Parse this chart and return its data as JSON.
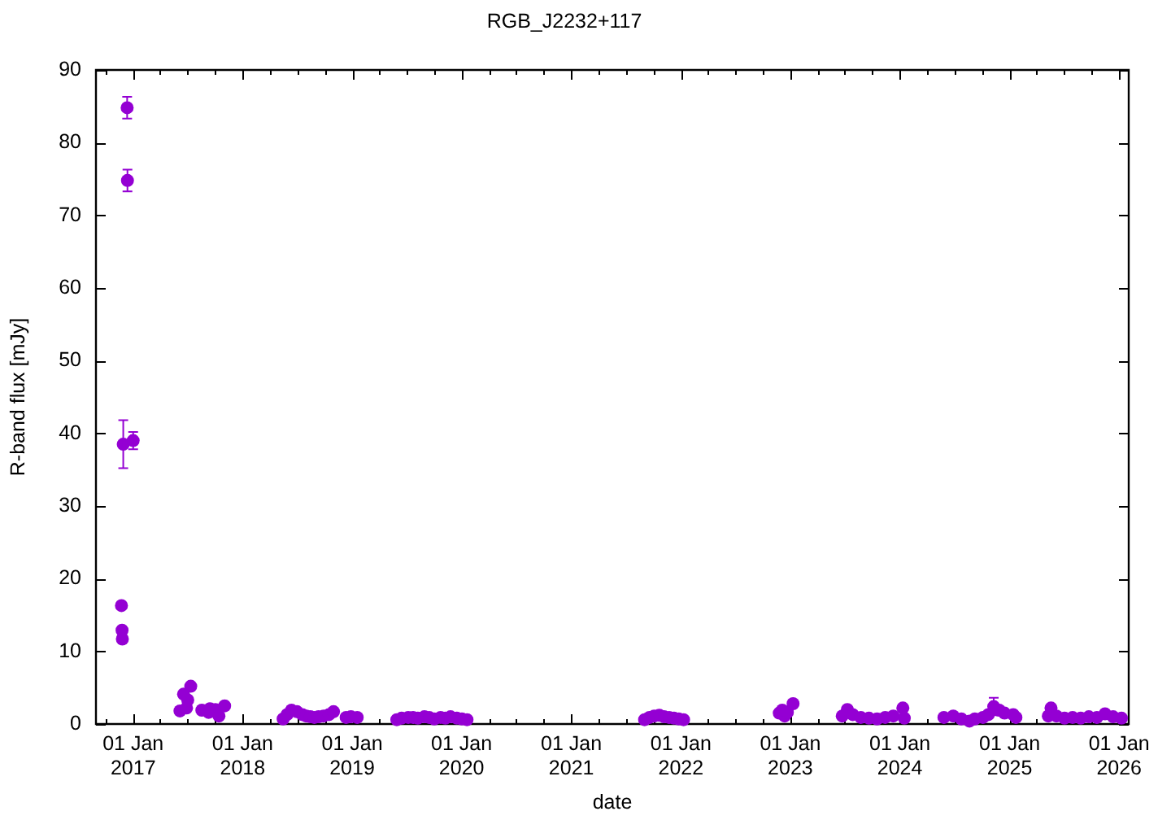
{
  "chart_data": {
    "type": "scatter",
    "title": "RGB_J2232+117",
    "xlabel": "date",
    "ylabel": "R-band flux [mJy]",
    "color": "#9400d3",
    "marker": "circle",
    "x": [
      "2016-11-23",
      "2016-11-25",
      "2016-11-26",
      "2016-11-29",
      "2016-12-12",
      "2016-12-13",
      "2017-01-01",
      "2017-06-06",
      "2017-06-18",
      "2017-06-28",
      "2017-07-02",
      "2017-07-12",
      "2017-08-18",
      "2017-09-10",
      "2017-09-14",
      "2017-10-02",
      "2017-10-14",
      "2017-11-02",
      "2018-05-16",
      "2018-05-29",
      "2018-06-13",
      "2018-07-01",
      "2018-07-19",
      "2018-08-01",
      "2018-08-15",
      "2018-08-28",
      "2018-09-11",
      "2018-09-28",
      "2018-10-16",
      "2018-10-31",
      "2018-12-12",
      "2018-12-28",
      "2019-01-18",
      "2019-05-30",
      "2019-06-15",
      "2019-07-07",
      "2019-07-23",
      "2019-08-08",
      "2019-08-30",
      "2019-09-15",
      "2019-10-02",
      "2019-10-23",
      "2019-11-08",
      "2019-11-25",
      "2019-12-16",
      "2020-01-02",
      "2020-01-19",
      "2021-09-02",
      "2021-09-18",
      "2021-10-04",
      "2021-10-21",
      "2021-11-06",
      "2021-11-23",
      "2021-12-09",
      "2021-12-25",
      "2022-01-10",
      "2022-11-25",
      "2022-12-05",
      "2022-12-13",
      "2022-12-22",
      "2023-01-10",
      "2023-06-23",
      "2023-07-10",
      "2023-07-28",
      "2023-08-24",
      "2023-09-20",
      "2023-10-17",
      "2023-11-13",
      "2023-12-10",
      "2024-01-11",
      "2024-01-16",
      "2024-05-27",
      "2024-06-27",
      "2024-07-24",
      "2024-08-20",
      "2024-09-07",
      "2024-10-04",
      "2024-10-22",
      "2024-11-09",
      "2024-11-27",
      "2024-12-15",
      "2025-01-13",
      "2025-01-22",
      "2025-05-10",
      "2025-05-19",
      "2025-06-06",
      "2025-07-03",
      "2025-07-30",
      "2025-08-26",
      "2025-09-22",
      "2025-10-19",
      "2025-11-15",
      "2025-12-12",
      "2026-01-09"
    ],
    "values": [
      16.3,
      12.9,
      11.7,
      38.5,
      84.8,
      74.8,
      39.0,
      1.8,
      4.1,
      2.2,
      3.3,
      5.2,
      1.9,
      1.6,
      2.1,
      2.0,
      1.1,
      2.5,
      0.7,
      1.3,
      1.9,
      1.7,
      1.3,
      1.1,
      1.0,
      0.9,
      1.0,
      1.1,
      1.3,
      1.7,
      0.9,
      1.0,
      0.9,
      0.6,
      0.8,
      0.9,
      0.9,
      0.8,
      1.0,
      0.9,
      0.7,
      0.9,
      0.8,
      1.0,
      0.8,
      0.7,
      0.6,
      0.6,
      0.9,
      1.1,
      1.2,
      1.0,
      0.9,
      0.8,
      0.7,
      0.6,
      1.5,
      1.9,
      1.1,
      1.6,
      2.8,
      1.1,
      2.0,
      1.3,
      0.9,
      0.8,
      0.7,
      0.9,
      1.1,
      2.2,
      0.8,
      0.9,
      1.1,
      0.7,
      0.4,
      0.7,
      0.9,
      1.3,
      2.4,
      1.9,
      1.5,
      1.3,
      0.9,
      1.1,
      2.2,
      1.1,
      0.8,
      0.9,
      0.8,
      1.0,
      0.9,
      1.4,
      1.0,
      0.8
    ],
    "errors": [
      null,
      null,
      null,
      3.3,
      1.5,
      1.5,
      1.2,
      null,
      null,
      null,
      null,
      null,
      null,
      null,
      null,
      null,
      null,
      null,
      null,
      null,
      null,
      null,
      null,
      null,
      null,
      null,
      null,
      null,
      null,
      null,
      null,
      null,
      null,
      null,
      null,
      null,
      null,
      null,
      null,
      null,
      null,
      null,
      null,
      null,
      null,
      null,
      null,
      null,
      null,
      null,
      null,
      null,
      null,
      null,
      null,
      null,
      null,
      null,
      null,
      null,
      null,
      null,
      null,
      null,
      null,
      null,
      null,
      null,
      null,
      null,
      null,
      null,
      null,
      null,
      null,
      null,
      null,
      null,
      1.2,
      null,
      null,
      null,
      null,
      null,
      null,
      null,
      null,
      null,
      null,
      null,
      null,
      null,
      null,
      null
    ],
    "xlim": [
      "2016-08-30",
      "2026-02-02"
    ],
    "xticks": [
      {
        "value": "2016-10-01",
        "label": null
      },
      {
        "value": "2017-01-01",
        "label": "01 Jan\n2017"
      },
      {
        "value": "2017-04-01",
        "label": null
      },
      {
        "value": "2017-07-01",
        "label": null
      },
      {
        "value": "2017-10-01",
        "label": null
      },
      {
        "value": "2018-01-01",
        "label": "01 Jan\n2018"
      },
      {
        "value": "2018-04-01",
        "label": null
      },
      {
        "value": "2018-07-01",
        "label": null
      },
      {
        "value": "2018-10-01",
        "label": null
      },
      {
        "value": "2019-01-01",
        "label": "01 Jan\n2019"
      },
      {
        "value": "2019-04-01",
        "label": null
      },
      {
        "value": "2019-07-01",
        "label": null
      },
      {
        "value": "2019-10-01",
        "label": null
      },
      {
        "value": "2020-01-01",
        "label": "01 Jan\n2020"
      },
      {
        "value": "2020-04-01",
        "label": null
      },
      {
        "value": "2020-07-01",
        "label": null
      },
      {
        "value": "2020-10-01",
        "label": null
      },
      {
        "value": "2021-01-01",
        "label": "01 Jan\n2021"
      },
      {
        "value": "2021-04-01",
        "label": null
      },
      {
        "value": "2021-07-01",
        "label": null
      },
      {
        "value": "2021-10-01",
        "label": null
      },
      {
        "value": "2022-01-01",
        "label": "01 Jan\n2022"
      },
      {
        "value": "2022-04-01",
        "label": null
      },
      {
        "value": "2022-07-01",
        "label": null
      },
      {
        "value": "2022-10-01",
        "label": null
      },
      {
        "value": "2023-01-01",
        "label": "01 Jan\n2023"
      },
      {
        "value": "2023-04-01",
        "label": null
      },
      {
        "value": "2023-07-01",
        "label": null
      },
      {
        "value": "2023-10-01",
        "label": null
      },
      {
        "value": "2024-01-01",
        "label": "01 Jan\n2024"
      },
      {
        "value": "2024-04-01",
        "label": null
      },
      {
        "value": "2024-07-01",
        "label": null
      },
      {
        "value": "2024-10-01",
        "label": null
      },
      {
        "value": "2025-01-01",
        "label": "01 Jan\n2025"
      },
      {
        "value": "2025-04-01",
        "label": null
      },
      {
        "value": "2025-07-01",
        "label": null
      },
      {
        "value": "2025-10-01",
        "label": null
      },
      {
        "value": "2026-01-01",
        "label": "01 Jan\n2026"
      }
    ],
    "ylim": [
      0,
      90
    ],
    "yticks": [
      0,
      10,
      20,
      30,
      40,
      50,
      60,
      70,
      80,
      90
    ]
  }
}
